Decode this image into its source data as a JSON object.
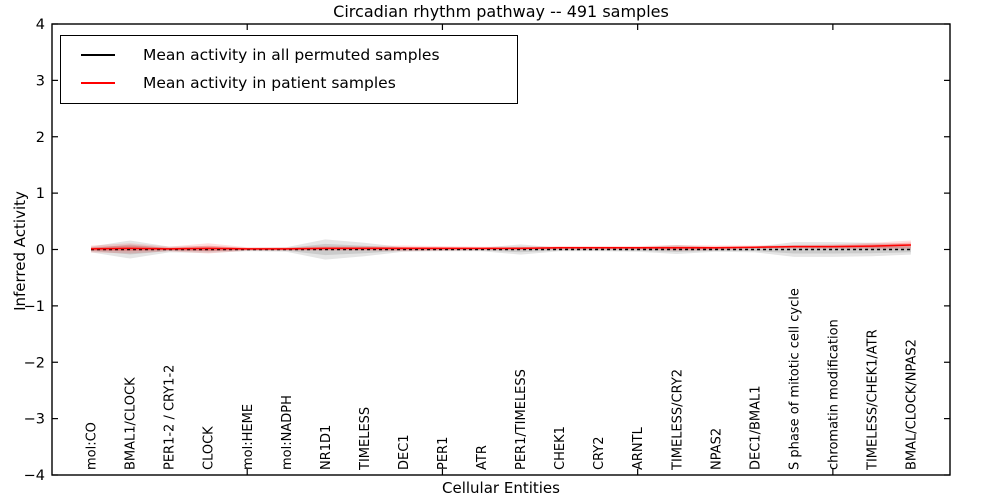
{
  "figure": {
    "title": "Circadian rhythm pathway -- 491 samples",
    "xlabel": "Cellular Entities",
    "ylabel": "Inferred Activity"
  },
  "legend": {
    "entries": [
      {
        "label": "Mean activity in all permuted samples",
        "color": "#000000",
        "style": "dashed"
      },
      {
        "label": "Mean activity in patient samples",
        "color": "#ff0000",
        "style": "solid"
      }
    ]
  },
  "chart_data": {
    "type": "line",
    "title": "Circadian rhythm pathway -- 491 samples",
    "xlabel": "Cellular Entities",
    "ylabel": "Inferred Activity",
    "ylim": [
      -4,
      4
    ],
    "xlim": [
      0,
      23
    ],
    "grid": false,
    "legend_position": "upper left",
    "y_ticks": [
      {
        "value": 4,
        "label": "4"
      },
      {
        "value": 3,
        "label": "3"
      },
      {
        "value": 2,
        "label": "2"
      },
      {
        "value": 1,
        "label": "1"
      },
      {
        "value": 0,
        "label": "0"
      },
      {
        "value": -1,
        "label": "−1"
      },
      {
        "value": -2,
        "label": "−2"
      },
      {
        "value": -3,
        "label": "−3"
      },
      {
        "value": -4,
        "label": "−4"
      }
    ],
    "x_major_tick_values": [
      5,
      10,
      15,
      20
    ],
    "categories": [
      "mol:CO",
      "BMAL1/CLOCK",
      "PER1-2 / CRY1-2",
      "CLOCK",
      "mol:HEME",
      "mol:NADPH",
      "NR1D1",
      "TIMELESS",
      "DEC1",
      "PER1",
      "ATR",
      "PER1/TIMELESS",
      "CHEK1",
      "CRY2",
      "ARNTL",
      "TIMELESS/CRY2",
      "NPAS2",
      "DEC1/BMAL1",
      "S phase of mitotic cell cycle",
      "chromatin modification",
      "TIMELESS/CHEK1/ATR",
      "BMAL/CLOCK/NPAS2"
    ],
    "series": [
      {
        "name": "Mean activity in all permuted samples",
        "color": "#000000",
        "band_color": "#000000",
        "style": "dashed",
        "values": [
          0,
          0,
          0,
          0,
          0,
          0,
          0,
          0,
          0,
          0,
          0,
          0,
          0,
          0,
          0,
          0,
          0,
          0,
          0,
          0,
          0,
          0
        ],
        "spread": [
          0.05,
          0.16,
          0.05,
          0.06,
          0.03,
          0.04,
          0.18,
          0.12,
          0.04,
          0.03,
          0.03,
          0.09,
          0.03,
          0.03,
          0.04,
          0.08,
          0.04,
          0.05,
          0.13,
          0.13,
          0.12,
          0.09
        ]
      },
      {
        "name": "Mean activity in patient samples",
        "color": "#ff0000",
        "band_color": "#ff0000",
        "style": "solid",
        "values": [
          0.01,
          0.02,
          0.01,
          0.02,
          0.01,
          0.01,
          0.02,
          0.02,
          0.02,
          0.02,
          0.02,
          0.02,
          0.03,
          0.03,
          0.03,
          0.03,
          0.03,
          0.04,
          0.05,
          0.05,
          0.06,
          0.08
        ],
        "spread": [
          0.06,
          0.09,
          0.04,
          0.09,
          0.03,
          0.03,
          0.04,
          0.04,
          0.05,
          0.04,
          0.03,
          0.03,
          0.03,
          0.03,
          0.03,
          0.05,
          0.04,
          0.03,
          0.03,
          0.04,
          0.06,
          0.08
        ]
      }
    ]
  }
}
